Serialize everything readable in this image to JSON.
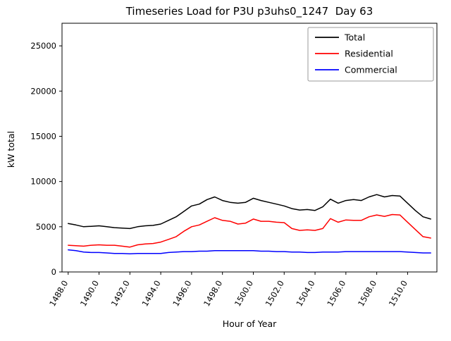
{
  "chart_data": {
    "type": "line",
    "title": "Timeseries Load for P3U p3uhs0_1247  Day 63",
    "xlabel": "Hour of Year",
    "ylabel": "kW total",
    "xlim": [
      1487.6,
      1511.9
    ],
    "ylim": [
      0,
      27500
    ],
    "grid": false,
    "legend_position": "upper right",
    "xticks": {
      "values": [
        1488,
        1490,
        1492,
        1494,
        1496,
        1498,
        1500,
        1502,
        1504,
        1506,
        1508,
        1510
      ],
      "labels": [
        "1488.0",
        "1490.0",
        "1492.0",
        "1494.0",
        "1496.0",
        "1498.0",
        "1500.0",
        "1502.0",
        "1504.0",
        "1506.0",
        "1508.0",
        "1510.0"
      ]
    },
    "yticks": {
      "values": [
        0,
        5000,
        10000,
        15000,
        20000,
        25000
      ],
      "labels": [
        "0",
        "5000",
        "10000",
        "15000",
        "20000",
        "25000"
      ]
    },
    "x": [
      1488,
      1488.5,
      1489,
      1489.5,
      1490,
      1490.5,
      1491,
      1491.5,
      1492,
      1492.5,
      1493,
      1493.5,
      1494,
      1494.5,
      1495,
      1495.5,
      1496,
      1496.5,
      1497,
      1497.5,
      1498,
      1498.5,
      1499,
      1499.5,
      1500,
      1500.5,
      1501,
      1501.5,
      1502,
      1502.5,
      1503,
      1503.5,
      1504,
      1504.5,
      1505,
      1505.5,
      1506,
      1506.5,
      1507,
      1507.5,
      1508,
      1508.5,
      1509,
      1509.5,
      1510,
      1510.5,
      1511,
      1511.5
    ],
    "series": [
      {
        "name": "Total",
        "color": "#000000",
        "values": [
          5350,
          5200,
          5000,
          5050,
          5100,
          5000,
          4900,
          4850,
          4800,
          5000,
          5100,
          5150,
          5300,
          5700,
          6100,
          6700,
          7300,
          7500,
          8000,
          8300,
          7900,
          7700,
          7600,
          7700,
          8150,
          7900,
          7700,
          7500,
          7300,
          7000,
          6850,
          6900,
          6800,
          7200,
          8050,
          7600,
          7900,
          8000,
          7900,
          8300,
          8550,
          8300,
          8450,
          8400,
          7600,
          6800,
          6100,
          5850
        ]
      },
      {
        "name": "Residential",
        "color": "#ff0000",
        "values": [
          2950,
          2900,
          2850,
          2950,
          3000,
          2950,
          2950,
          2850,
          2750,
          3000,
          3100,
          3150,
          3300,
          3600,
          3900,
          4500,
          5000,
          5200,
          5600,
          6000,
          5700,
          5600,
          5300,
          5400,
          5850,
          5600,
          5600,
          5500,
          5450,
          4800,
          4600,
          4650,
          4600,
          4800,
          5900,
          5500,
          5750,
          5700,
          5700,
          6100,
          6300,
          6150,
          6350,
          6300,
          5500,
          4700,
          3900,
          3750
        ]
      },
      {
        "name": "Commercial",
        "color": "#0000ff",
        "values": [
          2450,
          2350,
          2200,
          2150,
          2150,
          2100,
          2050,
          2050,
          2000,
          2050,
          2050,
          2050,
          2050,
          2150,
          2200,
          2250,
          2250,
          2300,
          2300,
          2350,
          2350,
          2350,
          2350,
          2350,
          2350,
          2300,
          2300,
          2250,
          2250,
          2200,
          2200,
          2150,
          2150,
          2200,
          2200,
          2200,
          2250,
          2250,
          2250,
          2250,
          2250,
          2250,
          2250,
          2250,
          2200,
          2150,
          2100,
          2100
        ]
      }
    ]
  }
}
